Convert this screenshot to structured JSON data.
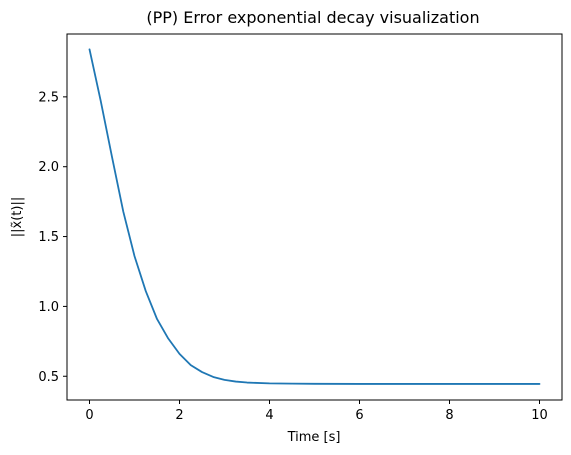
{
  "chart_data": {
    "type": "line",
    "title": "(PP) Error exponential decay visualization",
    "xlabel": "Time [s]",
    "ylabel": "||x̃(t)||",
    "xlim": [
      -0.5,
      10.5
    ],
    "ylim": [
      0.33,
      2.95
    ],
    "xticks": [
      0,
      2,
      4,
      6,
      8,
      10
    ],
    "xtick_labels": [
      "0",
      "2",
      "4",
      "6",
      "8",
      "10"
    ],
    "yticks": [
      0.5,
      1.0,
      1.5,
      2.0,
      2.5
    ],
    "ytick_labels": [
      "0.5",
      "1.0",
      "1.5",
      "2.0",
      "2.5"
    ],
    "grid": false,
    "series": [
      {
        "color": "#1f77b4",
        "x": [
          0,
          0.25,
          0.5,
          0.75,
          1.0,
          1.25,
          1.5,
          1.75,
          2.0,
          2.25,
          2.5,
          2.75,
          3.0,
          3.25,
          3.5,
          4.0,
          4.5,
          5.0,
          6.0,
          7.0,
          8.0,
          9.0,
          10.0
        ],
        "y": [
          2.84,
          2.47,
          2.07,
          1.68,
          1.36,
          1.11,
          0.91,
          0.77,
          0.66,
          0.58,
          0.53,
          0.495,
          0.474,
          0.462,
          0.455,
          0.449,
          0.447,
          0.446,
          0.445,
          0.445,
          0.445,
          0.445,
          0.445
        ]
      }
    ]
  }
}
